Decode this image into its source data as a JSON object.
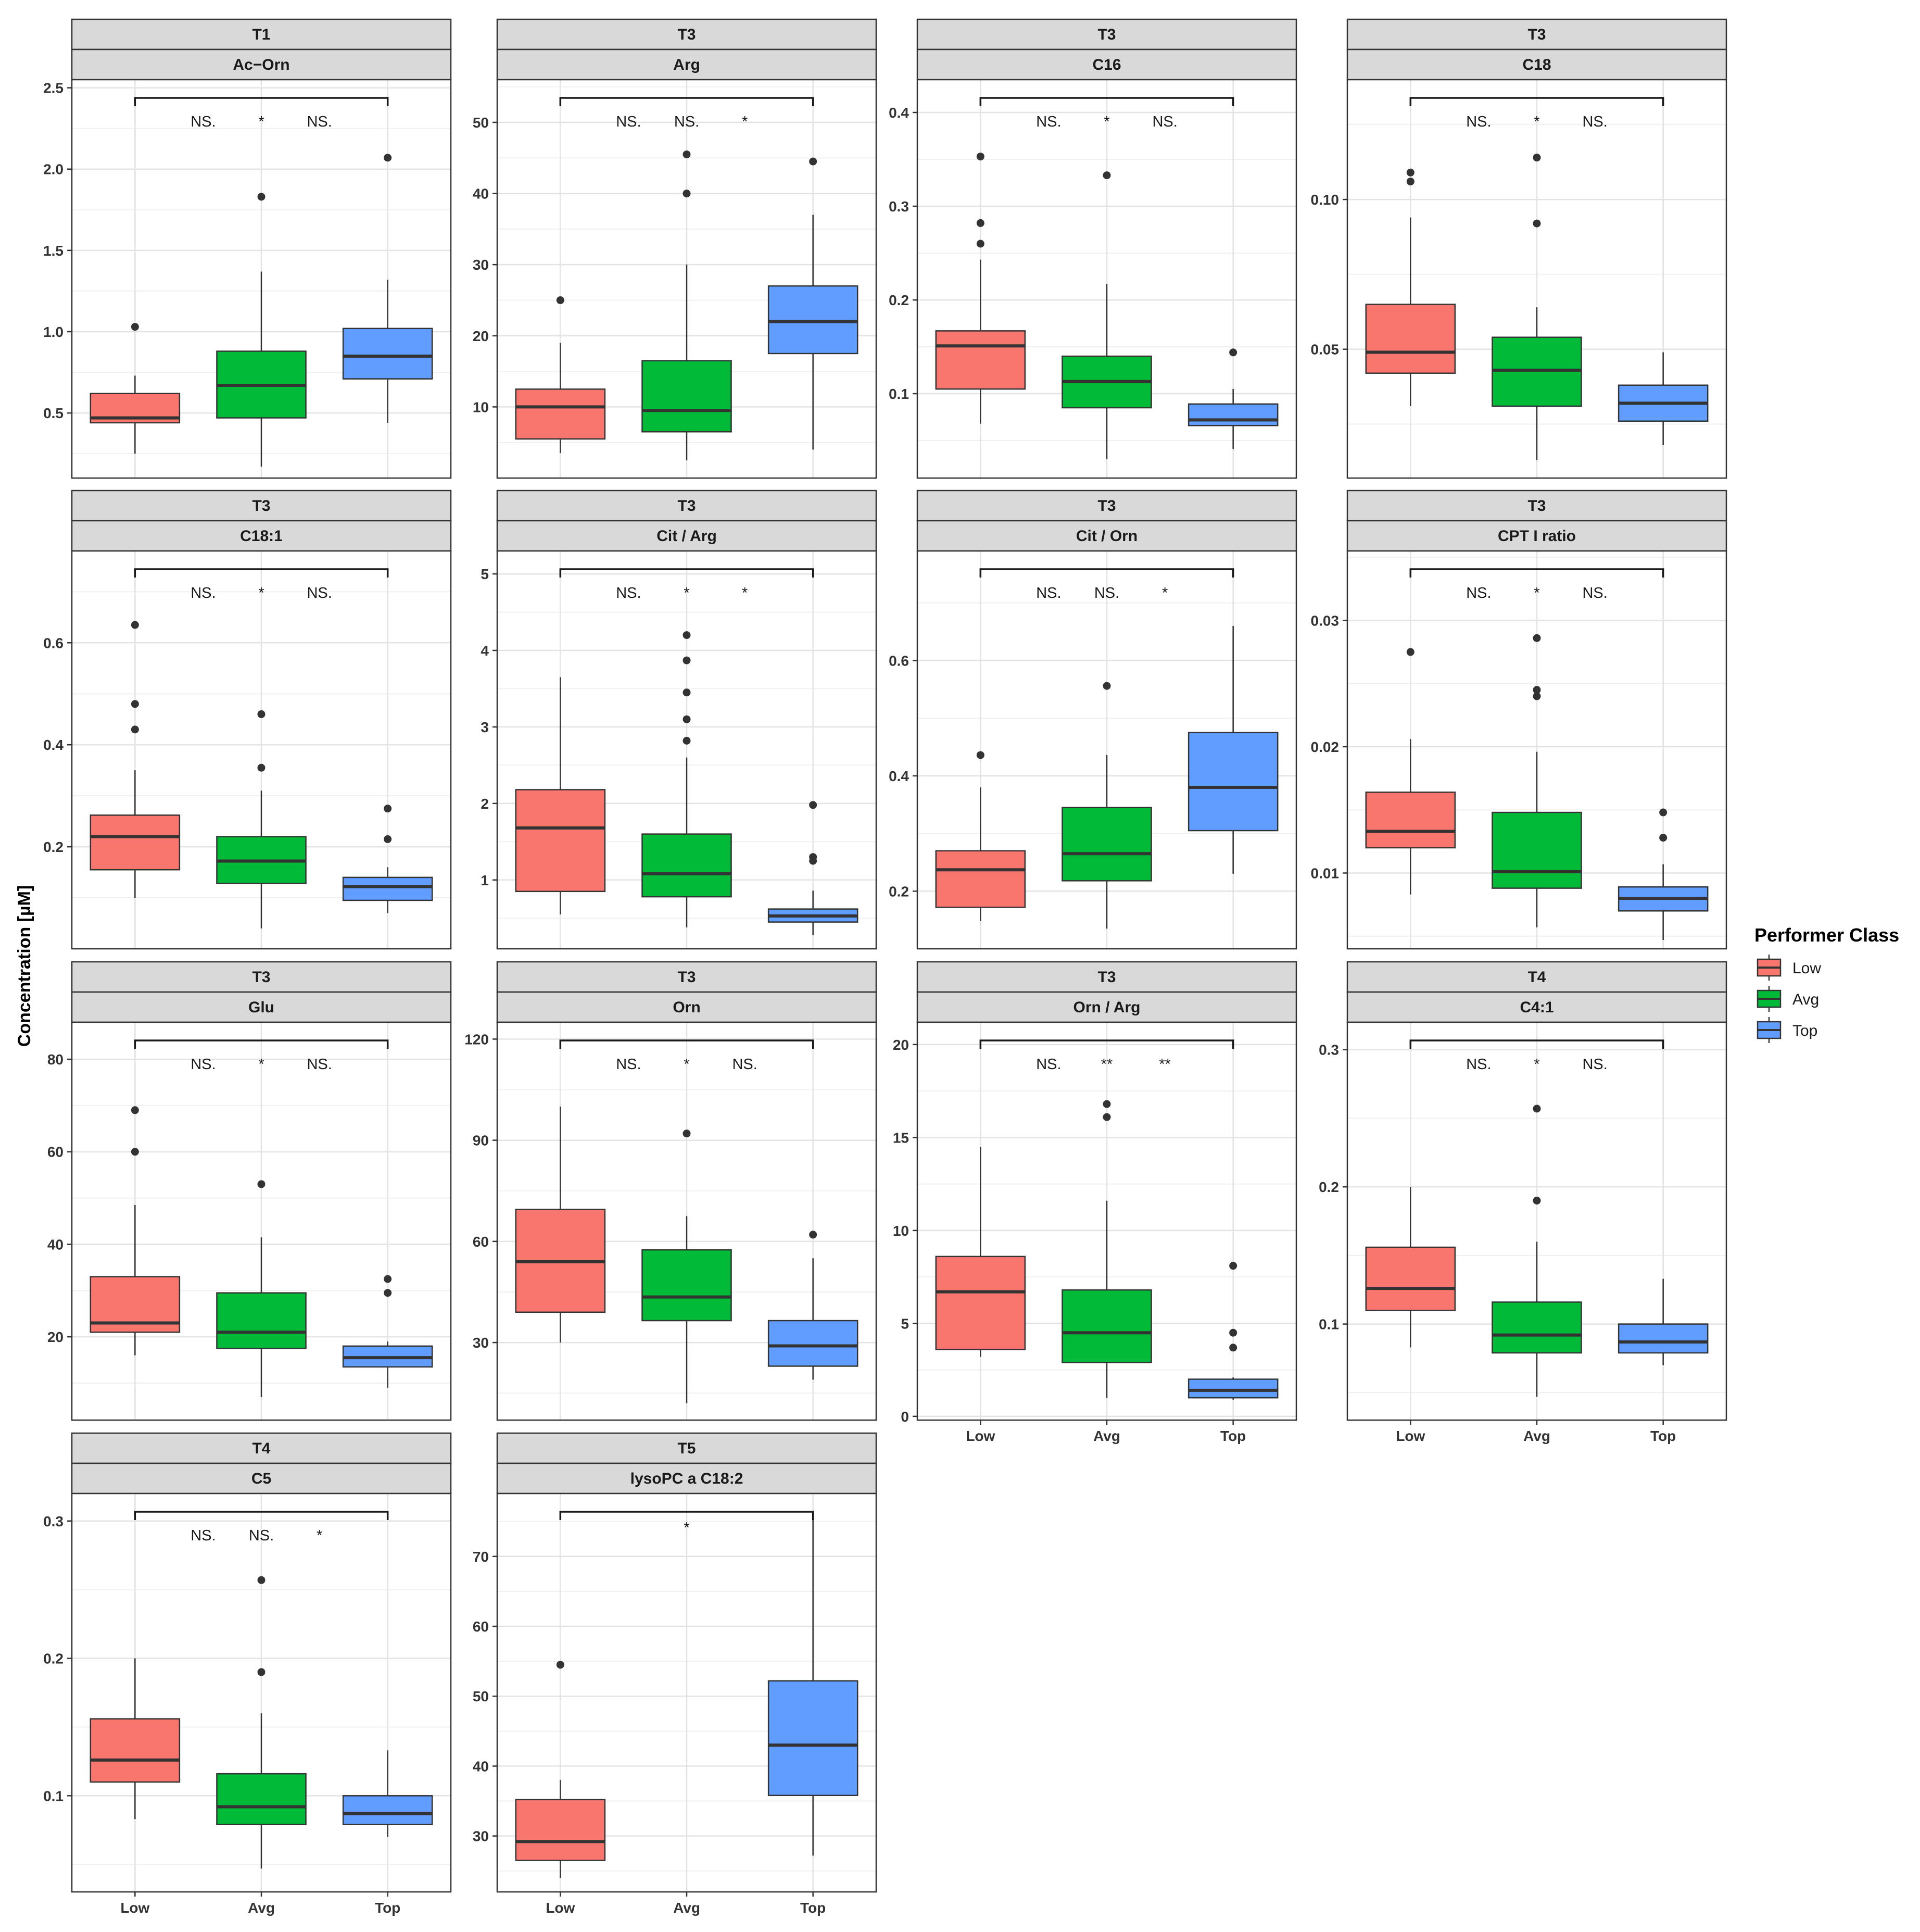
{
  "y_axis_label": "Concentration [µM]",
  "legend": {
    "title": "Performer Class",
    "items": [
      {
        "label": "Low",
        "color": "#F8766D"
      },
      {
        "label": "Avg",
        "color": "#00BA38"
      },
      {
        "label": "Top",
        "color": "#619CFF"
      }
    ]
  },
  "chart_data": [
    {
      "type": "box",
      "strip_top": "T1",
      "strip_bottom": "Ac−Orn",
      "ylim": [
        0.1,
        2.55
      ],
      "yticks": [
        0.5,
        1.0,
        1.5,
        2.0,
        2.5
      ],
      "yticklabels": [
        "0.5",
        "1.0",
        "1.5",
        "2.0",
        "2.5"
      ],
      "show_x_ticks": false,
      "categories": [
        "Low",
        "Avg",
        "Top"
      ],
      "boxes": [
        {
          "category": "Low",
          "min": 0.25,
          "q1": 0.44,
          "median": 0.47,
          "q3": 0.62,
          "max": 0.73,
          "outliers": [
            1.03
          ]
        },
        {
          "category": "Avg",
          "min": 0.17,
          "q1": 0.47,
          "median": 0.67,
          "q3": 0.88,
          "max": 1.37,
          "outliers": [
            1.83
          ]
        },
        {
          "category": "Top",
          "min": 0.44,
          "q1": 0.71,
          "median": 0.85,
          "q3": 1.02,
          "max": 1.32,
          "outliers": [
            2.07
          ]
        }
      ],
      "significance": [
        "NS.",
        "*",
        "NS."
      ]
    },
    {
      "type": "box",
      "strip_top": "T3",
      "strip_bottom": "Arg",
      "ylim": [
        0,
        56
      ],
      "yticks": [
        10,
        20,
        30,
        40,
        50
      ],
      "yticklabels": [
        "10",
        "20",
        "30",
        "40",
        "50"
      ],
      "show_x_ticks": false,
      "categories": [
        "Low",
        "Avg",
        "Top"
      ],
      "boxes": [
        {
          "category": "Low",
          "min": 3.5,
          "q1": 5.5,
          "median": 10,
          "q3": 12.5,
          "max": 19,
          "outliers": [
            25
          ]
        },
        {
          "category": "Avg",
          "min": 2.5,
          "q1": 6.5,
          "median": 9.5,
          "q3": 16.5,
          "max": 30,
          "outliers": [
            40,
            45.5
          ]
        },
        {
          "category": "Top",
          "min": 4,
          "q1": 17.5,
          "median": 22,
          "q3": 27,
          "max": 37,
          "outliers": [
            44.5
          ]
        }
      ],
      "significance": [
        "NS.",
        "NS.",
        "*"
      ]
    },
    {
      "type": "box",
      "strip_top": "T3",
      "strip_bottom": "C16",
      "ylim": [
        0.01,
        0.435
      ],
      "yticks": [
        0.1,
        0.2,
        0.3,
        0.4
      ],
      "yticklabels": [
        "0.1",
        "0.2",
        "0.3",
        "0.4"
      ],
      "show_x_ticks": false,
      "categories": [
        "Low",
        "Avg",
        "Top"
      ],
      "boxes": [
        {
          "category": "Low",
          "min": 0.068,
          "q1": 0.105,
          "median": 0.151,
          "q3": 0.167,
          "max": 0.243,
          "outliers": [
            0.26,
            0.282,
            0.353
          ]
        },
        {
          "category": "Avg",
          "min": 0.03,
          "q1": 0.085,
          "median": 0.113,
          "q3": 0.14,
          "max": 0.217,
          "outliers": [
            0.333
          ]
        },
        {
          "category": "Top",
          "min": 0.041,
          "q1": 0.066,
          "median": 0.072,
          "q3": 0.089,
          "max": 0.105,
          "outliers": [
            0.144
          ]
        }
      ],
      "significance": [
        "NS.",
        "*",
        "NS."
      ]
    },
    {
      "type": "box",
      "strip_top": "T3",
      "strip_bottom": "C18",
      "ylim": [
        0.007,
        0.14
      ],
      "yticks": [
        0.05,
        0.1
      ],
      "yticklabels": [
        "0.05",
        "0.10"
      ],
      "show_x_ticks": false,
      "categories": [
        "Low",
        "Avg",
        "Top"
      ],
      "boxes": [
        {
          "category": "Low",
          "min": 0.031,
          "q1": 0.042,
          "median": 0.049,
          "q3": 0.065,
          "max": 0.094,
          "outliers": [
            0.106,
            0.109
          ]
        },
        {
          "category": "Avg",
          "min": 0.013,
          "q1": 0.031,
          "median": 0.043,
          "q3": 0.054,
          "max": 0.064,
          "outliers": [
            0.092,
            0.114
          ]
        },
        {
          "category": "Top",
          "min": 0.018,
          "q1": 0.026,
          "median": 0.032,
          "q3": 0.038,
          "max": 0.049,
          "outliers": []
        }
      ],
      "significance": [
        "NS.",
        "*",
        "NS."
      ]
    },
    {
      "type": "box",
      "strip_top": "T3",
      "strip_bottom": "C18:1",
      "ylim": [
        0.0,
        0.78
      ],
      "yticks": [
        0.2,
        0.4,
        0.6
      ],
      "yticklabels": [
        "0.2",
        "0.4",
        "0.6"
      ],
      "show_x_ticks": false,
      "categories": [
        "Low",
        "Avg",
        "Top"
      ],
      "boxes": [
        {
          "category": "Low",
          "min": 0.1,
          "q1": 0.155,
          "median": 0.22,
          "q3": 0.262,
          "max": 0.35,
          "outliers": [
            0.43,
            0.48,
            0.635
          ]
        },
        {
          "category": "Avg",
          "min": 0.04,
          "q1": 0.128,
          "median": 0.172,
          "q3": 0.22,
          "max": 0.31,
          "outliers": [
            0.355,
            0.46
          ]
        },
        {
          "category": "Top",
          "min": 0.07,
          "q1": 0.095,
          "median": 0.122,
          "q3": 0.14,
          "max": 0.16,
          "outliers": [
            0.215,
            0.275
          ]
        }
      ],
      "significance": [
        "NS.",
        "*",
        "NS."
      ]
    },
    {
      "type": "box",
      "strip_top": "T3",
      "strip_bottom": "Cit  / Arg",
      "ylim": [
        0.1,
        5.3
      ],
      "yticks": [
        1,
        2,
        3,
        4,
        5
      ],
      "yticklabels": [
        "1",
        "2",
        "3",
        "4",
        "5"
      ],
      "show_x_ticks": false,
      "categories": [
        "Low",
        "Avg",
        "Top"
      ],
      "boxes": [
        {
          "category": "Low",
          "min": 0.55,
          "q1": 0.85,
          "median": 1.68,
          "q3": 2.18,
          "max": 3.65,
          "outliers": []
        },
        {
          "category": "Avg",
          "min": 0.38,
          "q1": 0.78,
          "median": 1.08,
          "q3": 1.6,
          "max": 2.6,
          "outliers": [
            2.82,
            3.1,
            3.45,
            3.87,
            4.2
          ]
        },
        {
          "category": "Top",
          "min": 0.28,
          "q1": 0.45,
          "median": 0.53,
          "q3": 0.62,
          "max": 0.86,
          "outliers": [
            1.25,
            1.3,
            1.98
          ]
        }
      ],
      "significance": [
        "NS.",
        "*",
        "*"
      ]
    },
    {
      "type": "box",
      "strip_top": "T3",
      "strip_bottom": "Cit  / Orn",
      "ylim": [
        0.1,
        0.79
      ],
      "yticks": [
        0.2,
        0.4,
        0.6
      ],
      "yticklabels": [
        "0.2",
        "0.4",
        "0.6"
      ],
      "show_x_ticks": false,
      "categories": [
        "Low",
        "Avg",
        "Top"
      ],
      "boxes": [
        {
          "category": "Low",
          "min": 0.148,
          "q1": 0.172,
          "median": 0.237,
          "q3": 0.27,
          "max": 0.38,
          "outliers": [
            0.436
          ]
        },
        {
          "category": "Avg",
          "min": 0.135,
          "q1": 0.218,
          "median": 0.265,
          "q3": 0.345,
          "max": 0.436,
          "outliers": [
            0.556
          ]
        },
        {
          "category": "Top",
          "min": 0.23,
          "q1": 0.305,
          "median": 0.38,
          "q3": 0.475,
          "max": 0.66,
          "outliers": []
        }
      ],
      "significance": [
        "NS.",
        "NS.",
        "*"
      ]
    },
    {
      "type": "box",
      "strip_top": "T3",
      "strip_bottom": "CPT I ratio",
      "ylim": [
        0.004,
        0.0355
      ],
      "yticks": [
        0.01,
        0.02,
        0.03
      ],
      "yticklabels": [
        "0.01",
        "0.02",
        "0.03"
      ],
      "show_x_ticks": false,
      "categories": [
        "Low",
        "Avg",
        "Top"
      ],
      "boxes": [
        {
          "category": "Low",
          "min": 0.0083,
          "q1": 0.012,
          "median": 0.0133,
          "q3": 0.0164,
          "max": 0.0206,
          "outliers": [
            0.0275
          ]
        },
        {
          "category": "Avg",
          "min": 0.0057,
          "q1": 0.0088,
          "median": 0.0101,
          "q3": 0.0148,
          "max": 0.0196,
          "outliers": [
            0.024,
            0.0245,
            0.0286
          ]
        },
        {
          "category": "Top",
          "min": 0.0047,
          "q1": 0.007,
          "median": 0.008,
          "q3": 0.0089,
          "max": 0.0107,
          "outliers": [
            0.0128,
            0.0148
          ]
        }
      ],
      "significance": [
        "NS.",
        "*",
        "NS."
      ]
    },
    {
      "type": "box",
      "strip_top": "T3",
      "strip_bottom": "Glu",
      "ylim": [
        2,
        88
      ],
      "yticks": [
        20,
        40,
        60,
        80
      ],
      "yticklabels": [
        "20",
        "40",
        "60",
        "80"
      ],
      "show_x_ticks": false,
      "categories": [
        "Low",
        "Avg",
        "Top"
      ],
      "boxes": [
        {
          "category": "Low",
          "min": 16,
          "q1": 21,
          "median": 23,
          "q3": 33,
          "max": 48.5,
          "outliers": [
            60,
            69
          ]
        },
        {
          "category": "Avg",
          "min": 7,
          "q1": 17.5,
          "median": 21,
          "q3": 29.5,
          "max": 41.5,
          "outliers": [
            53
          ]
        },
        {
          "category": "Top",
          "min": 9,
          "q1": 13.5,
          "median": 15.5,
          "q3": 18,
          "max": 19,
          "outliers": [
            29.5,
            32.5
          ]
        }
      ],
      "significance": [
        "NS.",
        "*",
        "NS."
      ]
    },
    {
      "type": "box",
      "strip_top": "T3",
      "strip_bottom": "Orn",
      "ylim": [
        7,
        125
      ],
      "yticks": [
        30,
        60,
        90,
        120
      ],
      "yticklabels": [
        "30",
        "60",
        "90",
        "120"
      ],
      "show_x_ticks": false,
      "categories": [
        "Low",
        "Avg",
        "Top"
      ],
      "boxes": [
        {
          "category": "Low",
          "min": 30,
          "q1": 39,
          "median": 54,
          "q3": 69.5,
          "max": 100,
          "outliers": []
        },
        {
          "category": "Avg",
          "min": 12,
          "q1": 36.5,
          "median": 43.5,
          "q3": 57.5,
          "max": 67.5,
          "outliers": [
            92
          ]
        },
        {
          "category": "Top",
          "min": 19,
          "q1": 23,
          "median": 29,
          "q3": 36.5,
          "max": 55,
          "outliers": [
            62
          ]
        }
      ],
      "significance": [
        "NS.",
        "*",
        "NS."
      ]
    },
    {
      "type": "box",
      "strip_top": "T3",
      "strip_bottom": "Orn  / Arg",
      "ylim": [
        -0.2,
        21.2
      ],
      "yticks": [
        0,
        5,
        10,
        15,
        20
      ],
      "yticklabels": [
        "0",
        "5",
        "10",
        "15",
        "20"
      ],
      "show_x_ticks": true,
      "categories": [
        "Low",
        "Avg",
        "Top"
      ],
      "boxes": [
        {
          "category": "Low",
          "min": 3.2,
          "q1": 3.6,
          "median": 6.7,
          "q3": 8.6,
          "max": 14.5,
          "outliers": []
        },
        {
          "category": "Avg",
          "min": 1.0,
          "q1": 2.9,
          "median": 4.5,
          "q3": 6.8,
          "max": 11.6,
          "outliers": [
            16.1,
            16.8
          ]
        },
        {
          "category": "Top",
          "min": 0.9,
          "q1": 1.0,
          "median": 1.4,
          "q3": 2.0,
          "max": 2.1,
          "outliers": [
            3.7,
            4.5,
            8.1
          ]
        }
      ],
      "significance": [
        "NS.",
        "**",
        "**"
      ]
    },
    {
      "type": "box",
      "strip_top": "T4",
      "strip_bottom": "C4:1",
      "ylim": [
        0.03,
        0.32
      ],
      "yticks": [
        0.1,
        0.2,
        0.3
      ],
      "yticklabels": [
        "0.1",
        "0.2",
        "0.3"
      ],
      "show_x_ticks": true,
      "categories": [
        "Low",
        "Avg",
        "Top"
      ],
      "boxes": [
        {
          "category": "Low",
          "min": 0.083,
          "q1": 0.11,
          "median": 0.126,
          "q3": 0.156,
          "max": 0.2,
          "outliers": []
        },
        {
          "category": "Avg",
          "min": 0.047,
          "q1": 0.079,
          "median": 0.092,
          "q3": 0.116,
          "max": 0.16,
          "outliers": [
            0.19,
            0.257
          ]
        },
        {
          "category": "Top",
          "min": 0.07,
          "q1": 0.079,
          "median": 0.087,
          "q3": 0.1,
          "max": 0.133,
          "outliers": []
        }
      ],
      "significance": [
        "NS.",
        "*",
        "NS."
      ]
    },
    {
      "type": "box",
      "strip_top": "T4",
      "strip_bottom": "C5",
      "ylim": [
        0.03,
        0.32
      ],
      "yticks": [
        0.1,
        0.2,
        0.3
      ],
      "yticklabels": [
        "0.1",
        "0.2",
        "0.3"
      ],
      "show_x_ticks": true,
      "categories": [
        "Low",
        "Avg",
        "Top"
      ],
      "boxes": [
        {
          "category": "Low",
          "min": 0.083,
          "q1": 0.11,
          "median": 0.126,
          "q3": 0.156,
          "max": 0.2,
          "outliers": []
        },
        {
          "category": "Avg",
          "min": 0.047,
          "q1": 0.079,
          "median": 0.092,
          "q3": 0.116,
          "max": 0.16,
          "outliers": [
            0.19,
            0.257
          ]
        },
        {
          "category": "Top",
          "min": 0.07,
          "q1": 0.079,
          "median": 0.087,
          "q3": 0.1,
          "max": 0.133,
          "outliers": []
        }
      ],
      "significance": [
        "NS.",
        "NS.",
        "*"
      ]
    },
    {
      "type": "box",
      "strip_top": "T5",
      "strip_bottom": "lysoPC a C18:2",
      "ylim": [
        22,
        79
      ],
      "yticks": [
        30,
        40,
        50,
        60,
        70
      ],
      "yticklabels": [
        "30",
        "40",
        "50",
        "60",
        "70"
      ],
      "show_x_ticks": true,
      "categories": [
        "Low",
        "Avg",
        "Top"
      ],
      "boxes": [
        {
          "category": "Low",
          "min": 24,
          "q1": 26.5,
          "median": 29.2,
          "q3": 35.2,
          "max": 38,
          "outliers": [
            54.5
          ]
        },
        {
          "category": "Top",
          "min": 27.2,
          "q1": 35.8,
          "median": 43,
          "q3": 52.2,
          "max": 75.5,
          "outliers": []
        }
      ],
      "significance": [
        "*"
      ]
    }
  ]
}
